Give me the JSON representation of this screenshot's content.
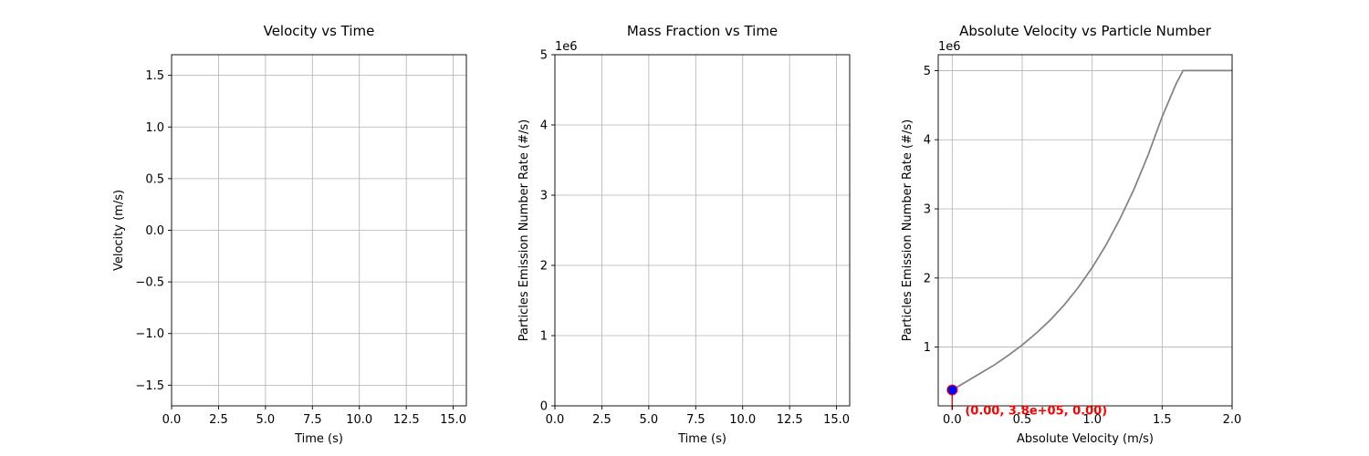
{
  "chart_data": [
    {
      "type": "line",
      "title": "Velocity vs Time",
      "xlabel": "Time (s)",
      "ylabel": "Velocity (m/s)",
      "xlim": [
        0,
        15.7
      ],
      "ylim": [
        -1.7,
        1.7
      ],
      "xticks": [
        "0.0",
        "2.5",
        "5.0",
        "7.5",
        "10.0",
        "12.5",
        "15.0"
      ],
      "xtick_values": [
        0,
        2.5,
        5,
        7.5,
        10,
        12.5,
        15
      ],
      "yticks": [
        "−1.5",
        "−1.0",
        "−0.5",
        "0.0",
        "0.5",
        "1.0",
        "1.5"
      ],
      "ytick_values": [
        -1.5,
        -1.0,
        -0.5,
        0.0,
        0.5,
        1.0,
        1.5
      ],
      "grid": true,
      "series": []
    },
    {
      "type": "line",
      "title": "Mass Fraction vs Time",
      "xlabel": "Time (s)",
      "ylabel": "Particles Emission Number Rate (#/s)",
      "offset_label": "1e6",
      "xlim": [
        0,
        15.7
      ],
      "ylim": [
        0,
        5000000
      ],
      "xticks": [
        "0.0",
        "2.5",
        "5.0",
        "7.5",
        "10.0",
        "12.5",
        "15.0"
      ],
      "xtick_values": [
        0,
        2.5,
        5,
        7.5,
        10,
        12.5,
        15
      ],
      "yticks": [
        "0",
        "1",
        "2",
        "3",
        "4",
        "5"
      ],
      "ytick_values": [
        0,
        1000000,
        2000000,
        3000000,
        4000000,
        5000000
      ],
      "grid": true,
      "series": []
    },
    {
      "type": "line",
      "title": "Absolute Velocity vs Particle Number",
      "xlabel": "Absolute Velocity (m/s)",
      "ylabel": "Particles Emission Number Rate (#/s)",
      "offset_label": "1e6",
      "xlim": [
        -0.1,
        2.0
      ],
      "ylim": [
        150000,
        5230000
      ],
      "xticks": [
        "0.0",
        "0.5",
        "1.0",
        "1.5",
        "2.0"
      ],
      "xtick_values": [
        0,
        0.5,
        1.0,
        1.5,
        2.0
      ],
      "yticks": [
        "1",
        "2",
        "3",
        "4",
        "5"
      ],
      "ytick_values": [
        1000000,
        2000000,
        3000000,
        4000000,
        5000000
      ],
      "grid": true,
      "series": [
        {
          "color": "#808080",
          "x": [
            0.0,
            0.1,
            0.2,
            0.3,
            0.4,
            0.5,
            0.6,
            0.7,
            0.8,
            0.9,
            1.0,
            1.1,
            1.2,
            1.3,
            1.4,
            1.5,
            1.6,
            1.65,
            1.67,
            1.7,
            1.8,
            1.9,
            2.0
          ],
          "y": [
            380000,
            500000,
            620000,
            740000,
            880000,
            1030000,
            1200000,
            1390000,
            1610000,
            1860000,
            2150000,
            2480000,
            2860000,
            3290000,
            3780000,
            4330000,
            4810000,
            5000000,
            5000000,
            5000000,
            5000000,
            5000000,
            5000000
          ]
        }
      ],
      "marker": {
        "x": 0.0,
        "y": 380000,
        "color": "#0000ff",
        "edge": "#ff0000"
      },
      "annotation": {
        "text": "(0.00, 3.8e+05, 0.00)",
        "color": "#ff0000"
      }
    }
  ]
}
